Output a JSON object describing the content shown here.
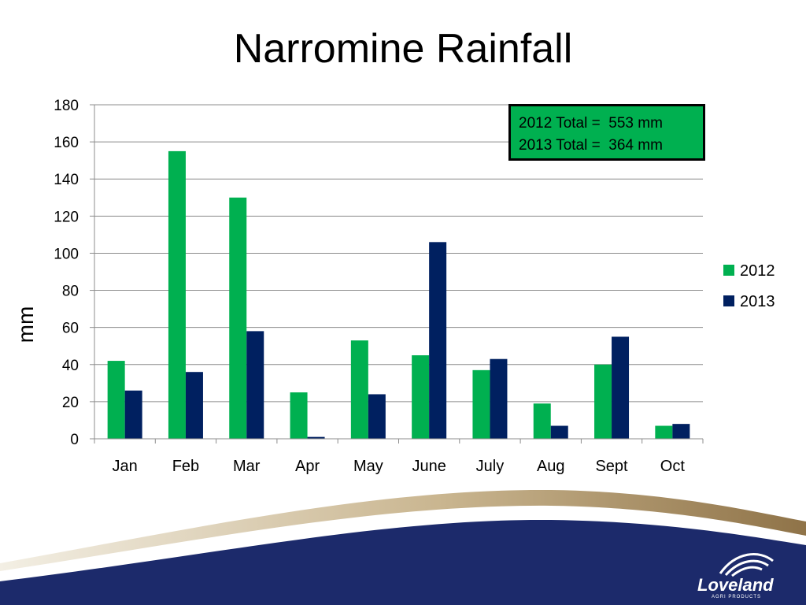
{
  "slide": {
    "title": "Narromine Rainfall"
  },
  "annotation": {
    "line1": "2012 Total =  553 mm",
    "line2": "2013 Total =  364 mm",
    "background": "#00b050"
  },
  "logo": {
    "name": "Loveland",
    "tagline": "AGRI PRODUCTS"
  },
  "colors": {
    "series_2012": "#00b050",
    "series_2013": "#002060",
    "footer_navy": "#1c2a6b",
    "footer_gold": "#a58b5a"
  },
  "chart_data": {
    "type": "bar",
    "categories": [
      "Jan",
      "Feb",
      "Mar",
      "Apr",
      "May",
      "June",
      "July",
      "Aug",
      "Sept",
      "Oct"
    ],
    "series": [
      {
        "name": "2012",
        "values": [
          42,
          155,
          130,
          25,
          53,
          45,
          37,
          19,
          40,
          7
        ]
      },
      {
        "name": "2013",
        "values": [
          26,
          36,
          58,
          1,
          24,
          106,
          43,
          7,
          55,
          8
        ]
      }
    ],
    "title": "Narromine Rainfall",
    "xlabel": "",
    "ylabel": "mm",
    "ylim": [
      0,
      180
    ],
    "yticks": [
      "0",
      "20",
      "40",
      "60",
      "80",
      "100",
      "120",
      "140",
      "160",
      "180"
    ],
    "grid": true,
    "legend_position": "right"
  }
}
